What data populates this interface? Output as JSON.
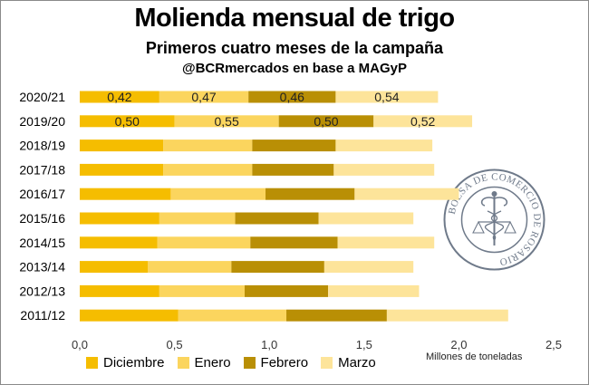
{
  "header": {
    "title": "Molienda mensual de trigo",
    "subtitle": "Primeros cuatro meses de la campaña",
    "credit": "@BCRmercados en base a MAGyP"
  },
  "watermark": {
    "seal_text": "BOLSA DE COMERCIO DE ROSARIO",
    "icon": "caduceus-seal-icon"
  },
  "chart_data": {
    "type": "bar",
    "orientation": "horizontal",
    "stacked": true,
    "categories": [
      "2020/21",
      "2019/20",
      "2018/19",
      "2017/18",
      "2016/17",
      "2015/16",
      "2014/15",
      "2013/14",
      "2012/13",
      "2011/12"
    ],
    "series": [
      {
        "name": "Diciembre",
        "color": "#f5bd00",
        "values": [
          0.42,
          0.5,
          0.44,
          0.44,
          0.48,
          0.42,
          0.41,
          0.36,
          0.42,
          0.52
        ]
      },
      {
        "name": "Enero",
        "color": "#fbd55e",
        "values": [
          0.47,
          0.55,
          0.47,
          0.47,
          0.5,
          0.4,
          0.49,
          0.44,
          0.45,
          0.57
        ]
      },
      {
        "name": "Febrero",
        "color": "#b98f05",
        "values": [
          0.46,
          0.5,
          0.44,
          0.43,
          0.47,
          0.44,
          0.46,
          0.49,
          0.44,
          0.53
        ]
      },
      {
        "name": "Marzo",
        "color": "#fde49a",
        "values": [
          0.54,
          0.52,
          0.51,
          0.53,
          0.55,
          0.5,
          0.51,
          0.47,
          0.48,
          0.64
        ]
      }
    ],
    "data_labels": {
      "2020/21": [
        "0,42",
        "0,47",
        "0,46",
        "0,54"
      ],
      "2019/20": [
        "0,50",
        "0,55",
        "0,50",
        "0,52"
      ]
    },
    "xlim": [
      0,
      2.5
    ],
    "xticks": [
      "0,0",
      "0,5",
      "1,0",
      "1,5",
      "2,0",
      "2,5"
    ],
    "xlabel": "Millones de toneladas",
    "ylabel": "",
    "grid": false,
    "legend_position": "bottom"
  }
}
